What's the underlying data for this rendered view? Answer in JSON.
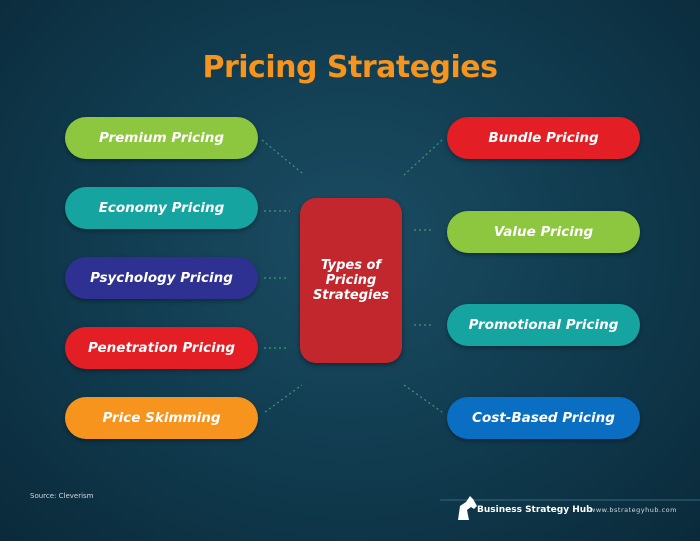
{
  "title": "Pricing Strategies",
  "center": "Types of Pricing Strategies",
  "left_nodes": [
    "Premium Pricing",
    "Economy Pricing",
    "Psychology Pricing",
    "Penetration Pricing",
    "Price Skimming"
  ],
  "right_nodes": [
    "Bundle Pricing",
    "Value Pricing",
    "Promotional Pricing",
    "Cost-Based Pricing"
  ],
  "footer": {
    "source": "Source: Cleverism",
    "brand": "Business Strategy Hub",
    "url": "www.bstrategyhub.com"
  }
}
